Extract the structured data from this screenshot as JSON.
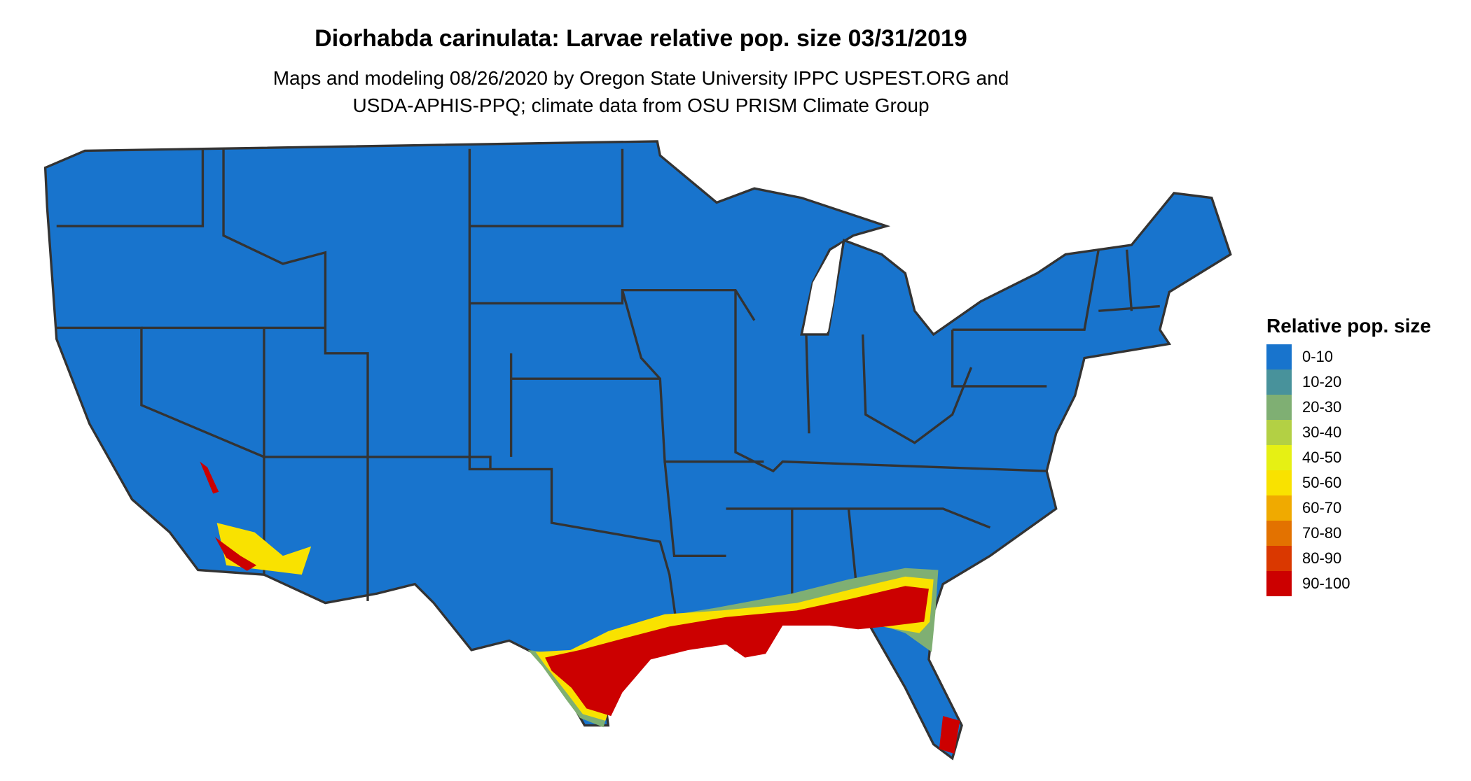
{
  "title": "Diorhabda carinulata: Larvae relative pop. size 03/31/2019",
  "subtitle_lines": [
    "Maps and modeling 08/26/2020 by Oregon State University IPPC USPEST.ORG and",
    "USDA-APHIS-PPQ; climate data from OSU PRISM Climate Group"
  ],
  "legend": {
    "title": "Relative pop. size",
    "items": [
      {
        "label": "0-10",
        "color": "#1874CD"
      },
      {
        "label": "10-20",
        "color": "#48929B"
      },
      {
        "label": "20-30",
        "color": "#7FAF73"
      },
      {
        "label": "30-40",
        "color": "#B3D044"
      },
      {
        "label": "40-50",
        "color": "#E6F014"
      },
      {
        "label": "50-60",
        "color": "#F9E200"
      },
      {
        "label": "60-70",
        "color": "#F0AA00"
      },
      {
        "label": "70-80",
        "color": "#E37200"
      },
      {
        "label": "80-90",
        "color": "#DA3800"
      },
      {
        "label": "90-100",
        "color": "#CC0000"
      }
    ]
  },
  "map": {
    "region": "Contiguous United States",
    "base_color": "#1874CD",
    "border_color": "#333333",
    "hotspots": [
      "Gulf Coast (Texas to Florida)",
      "South Florida",
      "Southern California / Arizona desert"
    ]
  }
}
